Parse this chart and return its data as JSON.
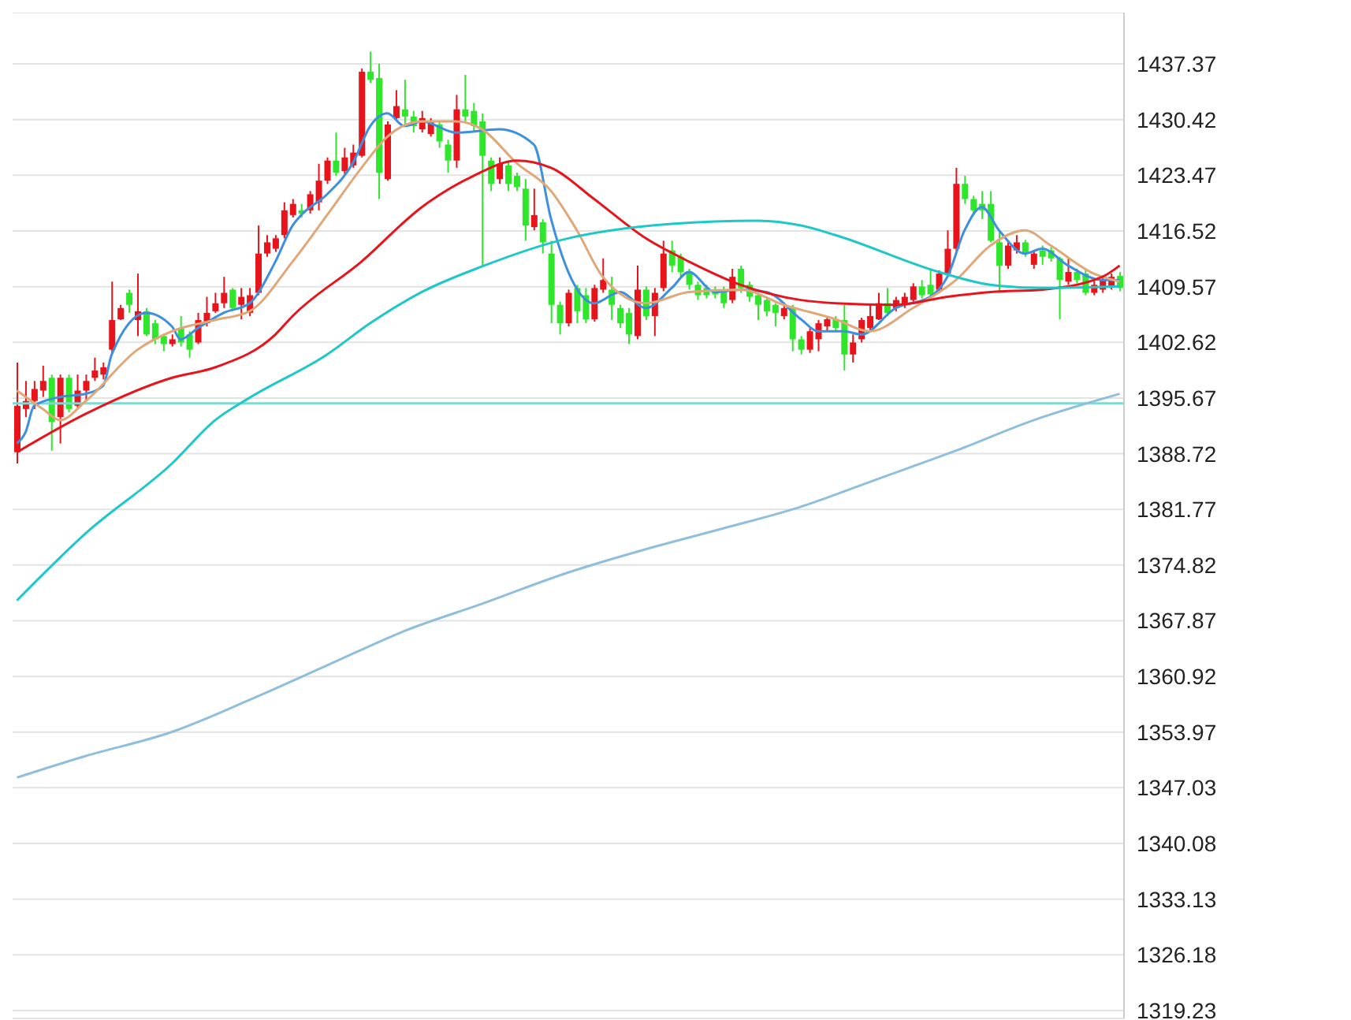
{
  "chart_data": {
    "type": "candlestick",
    "categories": [
      null,
      null,
      null,
      null,
      null,
      null,
      null,
      null,
      null,
      null,
      null,
      null,
      null,
      null,
      null,
      null,
      null,
      null,
      null,
      null,
      null,
      null,
      null,
      null,
      null,
      null,
      null,
      null,
      null,
      null,
      null,
      null,
      null,
      null,
      null,
      null,
      null,
      null,
      null,
      null,
      null,
      null,
      null,
      null,
      null,
      null,
      null,
      null,
      null,
      null,
      null,
      null,
      null,
      null,
      null,
      null,
      null,
      null,
      null,
      null,
      null,
      null,
      null,
      null,
      null,
      null,
      null,
      null,
      null,
      null,
      null,
      null,
      null,
      null,
      null,
      null,
      null,
      null,
      null,
      null,
      null,
      null,
      null,
      null,
      null,
      null,
      null,
      null,
      null,
      null,
      null,
      null,
      null,
      null,
      null,
      null,
      null,
      null,
      null,
      null,
      null,
      null,
      null,
      null,
      null,
      null,
      null,
      null,
      null,
      null,
      null,
      null,
      null,
      null,
      null,
      null,
      null,
      null,
      null,
      null,
      null,
      null,
      null,
      null,
      null,
      null,
      null,
      null,
      null
    ],
    "ohlc": [
      [
        1388.9,
        1400.1,
        1387.5,
        1394.7
      ],
      [
        1394.3,
        1397.8,
        1393.3,
        1395.3
      ],
      [
        1395.3,
        1397.8,
        1394.3,
        1396.8
      ],
      [
        1396.6,
        1399.7,
        1395.8,
        1397.8
      ],
      [
        1398.2,
        1398.6,
        1389.1,
        1392.7
      ],
      [
        1393.3,
        1398.6,
        1390.0,
        1398.2
      ],
      [
        1398.2,
        1398.6,
        1393.9,
        1394.3
      ],
      [
        1394.7,
        1398.6,
        1394.3,
        1396.6
      ],
      [
        1396.6,
        1398.6,
        1395.3,
        1397.8
      ],
      [
        1398.2,
        1400.7,
        1397.8,
        1399.1
      ],
      [
        1398.6,
        1400.1,
        1398.0,
        1399.5
      ],
      [
        1401.7,
        1410.2,
        1401.1,
        1405.4
      ],
      [
        1405.5,
        1407.3,
        1405.4,
        1406.9
      ],
      [
        1408.8,
        1409.2,
        1406.3,
        1407.3
      ],
      [
        1405.4,
        1411.2,
        1403.4,
        1406.5
      ],
      [
        1406.5,
        1406.9,
        1403.4,
        1403.6
      ],
      [
        1405.0,
        1405.4,
        1402.4,
        1403.0
      ],
      [
        1403.4,
        1403.6,
        1401.5,
        1402.4
      ],
      [
        1402.4,
        1403.6,
        1402.1,
        1403.0
      ],
      [
        1404.4,
        1405.9,
        1402.1,
        1402.6
      ],
      [
        1403.6,
        1404.0,
        1400.7,
        1401.7
      ],
      [
        1402.6,
        1406.3,
        1402.4,
        1405.4
      ],
      [
        1405.0,
        1408.3,
        1404.6,
        1406.3
      ],
      [
        1406.5,
        1408.8,
        1406.3,
        1407.5
      ],
      [
        1407.5,
        1410.8,
        1406.9,
        1408.8
      ],
      [
        1409.2,
        1409.4,
        1406.5,
        1406.9
      ],
      [
        1407.3,
        1409.4,
        1405.5,
        1408.3
      ],
      [
        1406.3,
        1409.4,
        1405.9,
        1408.5
      ],
      [
        1408.8,
        1417.2,
        1408.5,
        1413.7
      ],
      [
        1413.7,
        1416.0,
        1413.3,
        1415.1
      ],
      [
        1414.3,
        1416.0,
        1413.9,
        1415.6
      ],
      [
        1416.0,
        1420.1,
        1415.6,
        1419.1
      ],
      [
        1418.5,
        1420.5,
        1418.2,
        1419.9
      ],
      [
        1419.1,
        1419.9,
        1418.2,
        1418.7
      ],
      [
        1419.1,
        1421.5,
        1418.7,
        1421.1
      ],
      [
        1420.1,
        1424.9,
        1419.1,
        1422.8
      ],
      [
        1422.8,
        1425.7,
        1422.4,
        1425.3
      ],
      [
        1425.3,
        1428.8,
        1423.4,
        1423.8
      ],
      [
        1424.0,
        1426.9,
        1423.6,
        1425.7
      ],
      [
        1424.7,
        1427.3,
        1424.4,
        1426.3
      ],
      [
        1425.9,
        1436.8,
        1425.7,
        1436.4
      ],
      [
        1436.4,
        1438.9,
        1435.0,
        1435.4
      ],
      [
        1435.6,
        1437.4,
        1420.5,
        1423.8
      ],
      [
        1423.0,
        1430.2,
        1422.8,
        1429.8
      ],
      [
        1430.6,
        1434.1,
        1430.2,
        1432.1
      ],
      [
        1431.7,
        1435.4,
        1429.6,
        1430.8
      ],
      [
        1430.8,
        1431.5,
        1428.8,
        1429.6
      ],
      [
        1429.2,
        1431.5,
        1428.8,
        1430.6
      ],
      [
        1428.6,
        1430.6,
        1428.3,
        1430.2
      ],
      [
        1429.8,
        1430.2,
        1426.9,
        1427.7
      ],
      [
        1427.3,
        1427.9,
        1423.8,
        1425.3
      ],
      [
        1425.3,
        1433.5,
        1424.4,
        1431.7
      ],
      [
        1431.7,
        1436.0,
        1430.2,
        1430.8
      ],
      [
        1431.5,
        1432.5,
        1428.8,
        1429.6
      ],
      [
        1430.2,
        1431.2,
        1412.2,
        1425.9
      ],
      [
        1425.3,
        1425.7,
        1421.5,
        1422.4
      ],
      [
        1423.0,
        1425.7,
        1422.4,
        1424.9
      ],
      [
        1424.7,
        1425.1,
        1421.5,
        1422.4
      ],
      [
        1423.4,
        1423.8,
        1421.5,
        1422.0
      ],
      [
        1421.8,
        1423.0,
        1415.3,
        1417.2
      ],
      [
        1417.0,
        1421.8,
        1416.6,
        1418.5
      ],
      [
        1417.6,
        1418.0,
        1413.7,
        1415.1
      ],
      [
        1413.7,
        1415.3,
        1405.0,
        1407.3
      ],
      [
        1407.3,
        1407.7,
        1403.6,
        1405.0
      ],
      [
        1405.0,
        1409.2,
        1404.6,
        1408.8
      ],
      [
        1409.4,
        1409.8,
        1405.0,
        1406.5
      ],
      [
        1408.5,
        1409.4,
        1405.0,
        1405.5
      ],
      [
        1405.5,
        1409.8,
        1405.2,
        1409.4
      ],
      [
        1409.2,
        1413.1,
        1408.8,
        1410.4
      ],
      [
        1409.2,
        1410.8,
        1405.4,
        1407.3
      ],
      [
        1406.9,
        1407.3,
        1404.4,
        1405.0
      ],
      [
        1406.3,
        1406.9,
        1402.4,
        1403.6
      ],
      [
        1403.4,
        1412.2,
        1403.0,
        1409.2
      ],
      [
        1409.2,
        1409.6,
        1405.4,
        1405.9
      ],
      [
        1405.9,
        1409.4,
        1403.4,
        1408.8
      ],
      [
        1409.4,
        1415.3,
        1409.0,
        1413.7
      ],
      [
        1414.1,
        1415.3,
        1411.4,
        1412.2
      ],
      [
        1413.3,
        1413.7,
        1410.8,
        1411.4
      ],
      [
        1411.4,
        1411.8,
        1409.2,
        1409.8
      ],
      [
        1409.8,
        1410.2,
        1407.9,
        1408.5
      ],
      [
        1409.4,
        1409.8,
        1408.1,
        1408.5
      ],
      [
        1409.2,
        1409.6,
        1408.1,
        1408.6
      ],
      [
        1409.2,
        1409.6,
        1406.9,
        1407.5
      ],
      [
        1407.9,
        1411.8,
        1407.5,
        1410.8
      ],
      [
        1411.8,
        1412.2,
        1408.8,
        1409.4
      ],
      [
        1409.8,
        1410.2,
        1407.7,
        1408.3
      ],
      [
        1408.5,
        1408.8,
        1405.4,
        1407.3
      ],
      [
        1407.9,
        1408.3,
        1405.9,
        1406.5
      ],
      [
        1407.3,
        1407.5,
        1404.6,
        1406.3
      ],
      [
        1405.9,
        1407.5,
        1405.5,
        1406.9
      ],
      [
        1406.9,
        1407.3,
        1401.5,
        1403.0
      ],
      [
        1403.0,
        1403.4,
        1401.1,
        1401.7
      ],
      [
        1401.7,
        1404.4,
        1401.3,
        1404.0
      ],
      [
        1403.0,
        1405.4,
        1401.5,
        1405.0
      ],
      [
        1404.6,
        1405.9,
        1404.0,
        1405.5
      ],
      [
        1405.5,
        1405.9,
        1404.0,
        1404.4
      ],
      [
        1405.4,
        1407.3,
        1399.1,
        1401.1
      ],
      [
        1401.1,
        1403.6,
        1400.1,
        1402.6
      ],
      [
        1403.0,
        1405.7,
        1402.6,
        1405.4
      ],
      [
        1404.4,
        1407.3,
        1404.0,
        1405.9
      ],
      [
        1405.5,
        1408.8,
        1405.4,
        1407.5
      ],
      [
        1407.5,
        1409.4,
        1405.9,
        1406.3
      ],
      [
        1406.9,
        1408.3,
        1406.5,
        1407.9
      ],
      [
        1407.3,
        1408.8,
        1406.9,
        1408.3
      ],
      [
        1407.9,
        1410.0,
        1407.5,
        1409.6
      ],
      [
        1409.6,
        1410.4,
        1408.1,
        1408.5
      ],
      [
        1409.8,
        1411.8,
        1408.1,
        1408.6
      ],
      [
        1409.2,
        1411.6,
        1408.8,
        1411.2
      ],
      [
        1411.2,
        1416.6,
        1410.8,
        1414.3
      ],
      [
        1414.3,
        1424.4,
        1413.9,
        1422.4
      ],
      [
        1422.4,
        1423.4,
        1419.9,
        1420.5
      ],
      [
        1420.5,
        1420.9,
        1418.5,
        1419.1
      ],
      [
        1419.9,
        1421.5,
        1418.0,
        1419.1
      ],
      [
        1419.9,
        1421.5,
        1415.1,
        1415.3
      ],
      [
        1415.1,
        1416.6,
        1408.8,
        1412.2
      ],
      [
        1412.2,
        1415.1,
        1411.8,
        1414.7
      ],
      [
        1414.1,
        1416.0,
        1413.7,
        1415.1
      ],
      [
        1415.1,
        1415.4,
        1413.3,
        1413.7
      ],
      [
        1412.3,
        1414.1,
        1411.8,
        1413.7
      ],
      [
        1414.1,
        1414.7,
        1412.3,
        1413.3
      ],
      [
        1414.1,
        1414.5,
        1412.7,
        1413.1
      ],
      [
        1413.1,
        1413.3,
        1405.5,
        1410.4
      ],
      [
        1410.2,
        1413.1,
        1409.8,
        1411.4
      ],
      [
        1411.4,
        1411.8,
        1410.0,
        1410.4
      ],
      [
        1411.2,
        1411.6,
        1408.5,
        1408.8
      ],
      [
        1408.8,
        1410.4,
        1408.5,
        1409.8
      ],
      [
        1409.2,
        1410.8,
        1408.8,
        1410.4
      ],
      [
        1409.6,
        1411.2,
        1409.2,
        1410.8
      ],
      [
        1410.9,
        1411.4,
        1409.0,
        1409.4
      ]
    ],
    "series": [
      {
        "type": "line",
        "color": "#3d8fe0",
        "values": [
          1390.0,
          1391.4,
          1394.7,
          null,
          null,
          1395.8,
          null,
          null,
          1396.2,
          null,
          1397.2,
          1401.1,
          null,
          null,
          null,
          1406.3,
          null,
          null,
          1404.6,
          1403.0,
          null,
          1404.4,
          null,
          null,
          1406.3,
          null,
          null,
          1407.5,
          null,
          null,
          1412.7,
          null,
          1417.2,
          1418.5,
          null,
          null,
          1421.1,
          null,
          null,
          1425.0,
          null,
          1429.6,
          null,
          1431.2,
          null,
          1429.6,
          null,
          1430.2,
          null,
          null,
          null,
          1428.8,
          null,
          null,
          null,
          null,
          1429.2,
          null,
          null,
          null,
          1427.3,
          null,
          1418.0,
          null,
          1411.4,
          null,
          null,
          1407.5,
          null,
          null,
          1408.9,
          null,
          null,
          1406.9,
          null,
          null,
          1409.4,
          null,
          1411.4,
          null,
          null,
          1408.9,
          null,
          null,
          1409.2,
          null,
          null,
          1408.9,
          null,
          null,
          null,
          1405.5,
          null,
          1404.0,
          null,
          null,
          1404.0,
          null,
          1403.6,
          null,
          null,
          null,
          1406.9,
          null,
          null,
          null,
          1408.3,
          null,
          1410.8,
          null,
          1416.6,
          null,
          1419.5,
          null,
          1416.6,
          null,
          null,
          1413.7,
          null,
          1414.3,
          null,
          null,
          1412.2,
          null,
          null,
          null,
          1410.4,
          null,
          1410.4
        ]
      },
      {
        "type": "line",
        "color": "#e0a878",
        "values": [
          1396.6,
          null,
          null,
          1394.3,
          null,
          1392.9,
          null,
          null,
          1395.3,
          null,
          null,
          null,
          null,
          null,
          1401.7,
          null,
          null,
          null,
          1404.0,
          null,
          null,
          null,
          null,
          1405.4,
          null,
          null,
          null,
          1406.5,
          null,
          null,
          null,
          null,
          1412.7,
          null,
          null,
          null,
          1418.5,
          null,
          null,
          null,
          1424.4,
          null,
          null,
          1428.3,
          null,
          null,
          null,
          1430.2,
          null,
          null,
          null,
          1430.2,
          null,
          null,
          1429.2,
          null,
          null,
          null,
          1425.0,
          null,
          null,
          null,
          1421.5,
          null,
          null,
          1416.6,
          null,
          null,
          1410.8,
          null,
          null,
          null,
          null,
          1407.5,
          null,
          null,
          null,
          null,
          1408.9,
          null,
          null,
          null,
          null,
          null,
          1409.2,
          null,
          null,
          null,
          null,
          1407.3,
          null,
          null,
          null,
          null,
          null,
          1405.5,
          null,
          null,
          null,
          1404.0,
          null,
          null,
          null,
          null,
          1406.9,
          null,
          null,
          null,
          null,
          1410.4,
          null,
          null,
          null,
          1414.7,
          null,
          null,
          null,
          1416.6,
          null,
          null,
          1414.7,
          null,
          null,
          null,
          null,
          1411.2,
          null,
          null,
          1410.2
        ]
      },
      {
        "type": "line",
        "color": "#e8141b",
        "values": [
          1388.9,
          null,
          null,
          null,
          null,
          null,
          null,
          null,
          1393.7,
          null,
          null,
          null,
          null,
          null,
          null,
          null,
          null,
          null,
          1398.2,
          null,
          null,
          null,
          null,
          1399.5,
          null,
          null,
          null,
          null,
          null,
          null,
          1403.6,
          null,
          1405.9,
          null,
          null,
          null,
          null,
          null,
          null,
          null,
          1412.7,
          null,
          null,
          null,
          null,
          null,
          null,
          1419.5,
          null,
          null,
          null,
          null,
          null,
          1423.4,
          null,
          null,
          null,
          null,
          1425.3,
          null,
          null,
          null,
          1424.4,
          null,
          null,
          null,
          null,
          1420.5,
          null,
          null,
          null,
          null,
          null,
          1415.6,
          null,
          null,
          null,
          null,
          1412.7,
          null,
          null,
          null,
          null,
          null,
          1409.8,
          null,
          null,
          null,
          null,
          null,
          null,
          1407.9,
          null,
          null,
          null,
          1407.5,
          null,
          null,
          null,
          null,
          null,
          null,
          1407.3,
          null,
          null,
          null,
          null,
          null,
          1408.3,
          null,
          null,
          null,
          null,
          1408.9,
          null,
          null,
          null,
          null,
          null,
          1409.2,
          null,
          null,
          null,
          null,
          null,
          null,
          1410.8,
          null,
          1412.2
        ]
      },
      {
        "type": "line",
        "color": "#1fc8c8",
        "values": [
          1370.4,
          null,
          null,
          null,
          null,
          null,
          null,
          null,
          1378.8,
          null,
          null,
          null,
          null,
          null,
          null,
          null,
          null,
          null,
          1387.5,
          null,
          null,
          null,
          null,
          1392.9,
          null,
          null,
          null,
          1395.7,
          null,
          null,
          null,
          null,
          null,
          null,
          null,
          null,
          1401.1,
          null,
          null,
          null,
          null,
          1405.0,
          null,
          null,
          null,
          null,
          null,
          1408.9,
          null,
          null,
          null,
          null,
          null,
          null,
          1412.1,
          null,
          null,
          null,
          null,
          null,
          null,
          null,
          null,
          null,
          1415.6,
          null,
          null,
          null,
          null,
          1416.6,
          null,
          null,
          null,
          null,
          null,
          null,
          1417.4,
          null,
          null,
          null,
          null,
          null,
          null,
          null,
          null,
          null,
          1417.8,
          null,
          null,
          null,
          null,
          1417.2,
          null,
          null,
          null,
          1416.0,
          null,
          null,
          null,
          null,
          null,
          null,
          null,
          null,
          null,
          null,
          null,
          1411.4,
          null,
          null,
          null,
          null,
          null,
          1409.8,
          null,
          null,
          null,
          null,
          null,
          1409.4,
          null,
          null,
          null,
          null,
          null,
          null,
          null,
          null,
          1409.6
        ]
      },
      {
        "type": "line",
        "color": "#8fbfdc",
        "values": [
          1348.3,
          null,
          null,
          null,
          null,
          null,
          null,
          null,
          1351.0,
          null,
          null,
          null,
          null,
          null,
          null,
          null,
          null,
          null,
          1354.0,
          null,
          null,
          null,
          null,
          null,
          null,
          null,
          null,
          1358.0,
          null,
          null,
          null,
          null,
          null,
          null,
          null,
          null,
          1362.3,
          null,
          null,
          null,
          null,
          null,
          null,
          null,
          null,
          1366.6,
          null,
          null,
          null,
          null,
          null,
          null,
          null,
          null,
          1370.0,
          null,
          null,
          null,
          null,
          null,
          null,
          null,
          null,
          null,
          1373.9,
          null,
          null,
          null,
          null,
          null,
          null,
          null,
          null,
          1376.8,
          null,
          null,
          null,
          null,
          null,
          null,
          null,
          null,
          1379.4,
          null,
          null,
          null,
          null,
          null,
          null,
          null,
          null,
          1382.1,
          null,
          null,
          null,
          null,
          null,
          null,
          null,
          null,
          1385.6,
          null,
          null,
          null,
          null,
          null,
          null,
          null,
          null,
          1389.1,
          null,
          null,
          null,
          null,
          null,
          null,
          null,
          null,
          1392.9,
          null,
          null,
          null,
          null,
          null,
          null,
          null,
          null,
          null,
          1396.2
        ]
      }
    ],
    "ref_lines": [
      {
        "axis": "y",
        "value": 1395.0,
        "color": "#7fd8d2"
      }
    ],
    "ylim": [
      1318.24,
      1443.77
    ],
    "yticks": [
      1437.37,
      1430.42,
      1423.47,
      1416.52,
      1409.57,
      1402.62,
      1395.67,
      1388.72,
      1381.77,
      1374.82,
      1367.87,
      1360.92,
      1353.97,
      1347.03,
      1340.08,
      1333.13,
      1326.18,
      1319.23
    ],
    "grid": "y"
  }
}
